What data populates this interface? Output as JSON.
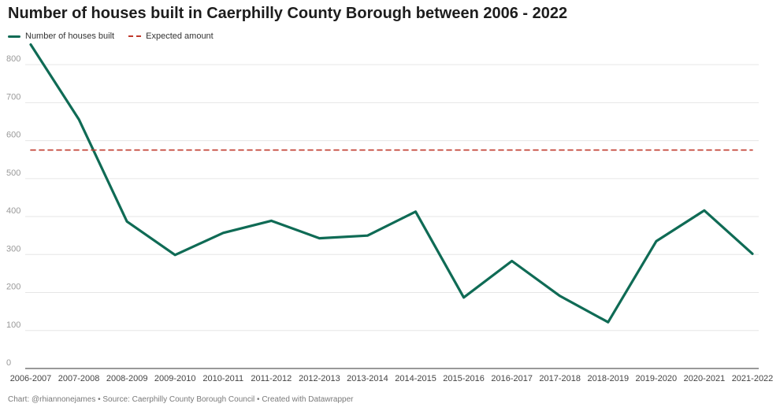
{
  "title": "Number of houses built in Caerphilly County Borough between 2006 - 2022",
  "footer": "Chart: @rhiannonejames • Source: Caerphilly County Borough Council • Created with Datawrapper",
  "colors": {
    "series_line": "#0f6b55",
    "expected_line": "#c0392b",
    "grid": "#e6e6e6",
    "axis": "#333333",
    "tick_text": "#999999",
    "xtick_text": "#444444"
  },
  "chart_data": {
    "type": "line",
    "title": "Number of houses built in Caerphilly County Borough between 2006 - 2022",
    "xlabel": "",
    "ylabel": "",
    "ylim": [
      0,
      850
    ],
    "yticks": [
      0,
      100,
      200,
      300,
      400,
      500,
      600,
      700,
      800
    ],
    "grid": true,
    "legend_position": "top-left",
    "categories": [
      "2006-2007",
      "2007-2008",
      "2008-2009",
      "2009-2010",
      "2010-2011",
      "2011-2012",
      "2012-2013",
      "2013-2014",
      "2014-2015",
      "2015-2016",
      "2016-2017",
      "2017-2018",
      "2018-2019",
      "2019-2020",
      "2020-2021",
      "2021-2022"
    ],
    "series": [
      {
        "name": "Number of houses built",
        "style": "solid",
        "values": [
          853,
          656,
          387,
          299,
          357,
          389,
          343,
          350,
          413,
          187,
          283,
          191,
          122,
          335,
          416,
          302
        ]
      },
      {
        "name": "Expected amount",
        "style": "dashed",
        "values": [
          575,
          575,
          575,
          575,
          575,
          575,
          575,
          575,
          575,
          575,
          575,
          575,
          575,
          575,
          575,
          575
        ]
      }
    ]
  }
}
